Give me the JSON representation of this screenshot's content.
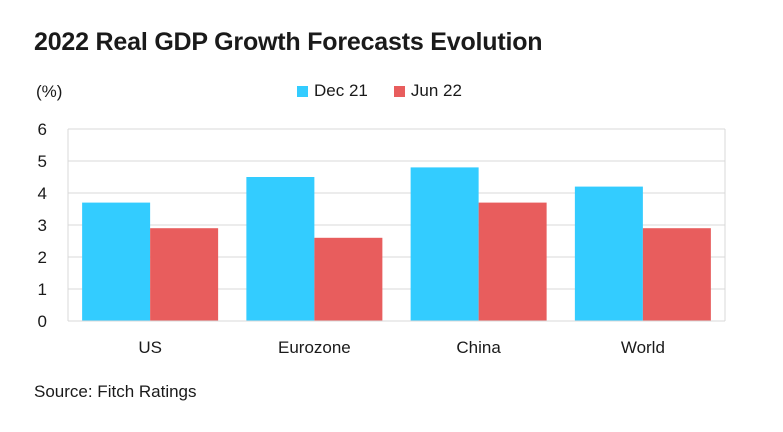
{
  "chart_data": {
    "type": "bar",
    "title": "2022 Real GDP Growth Forecasts Evolution",
    "ylabel": "(%)",
    "xlabel": "",
    "categories": [
      "US",
      "Eurozone",
      "China",
      "World"
    ],
    "series": [
      {
        "name": "Dec 21",
        "color": "#33ccff",
        "values": [
          3.7,
          4.5,
          4.8,
          4.2
        ]
      },
      {
        "name": "Jun 22",
        "color": "#e85d5d",
        "values": [
          2.9,
          2.6,
          3.7,
          2.9
        ]
      }
    ],
    "ylim": [
      0,
      6
    ],
    "yticks": [
      "0",
      "1",
      "2",
      "3",
      "4",
      "5",
      "6"
    ],
    "grid": true,
    "legend_position": "top-center",
    "source": "Source: Fitch Ratings"
  }
}
